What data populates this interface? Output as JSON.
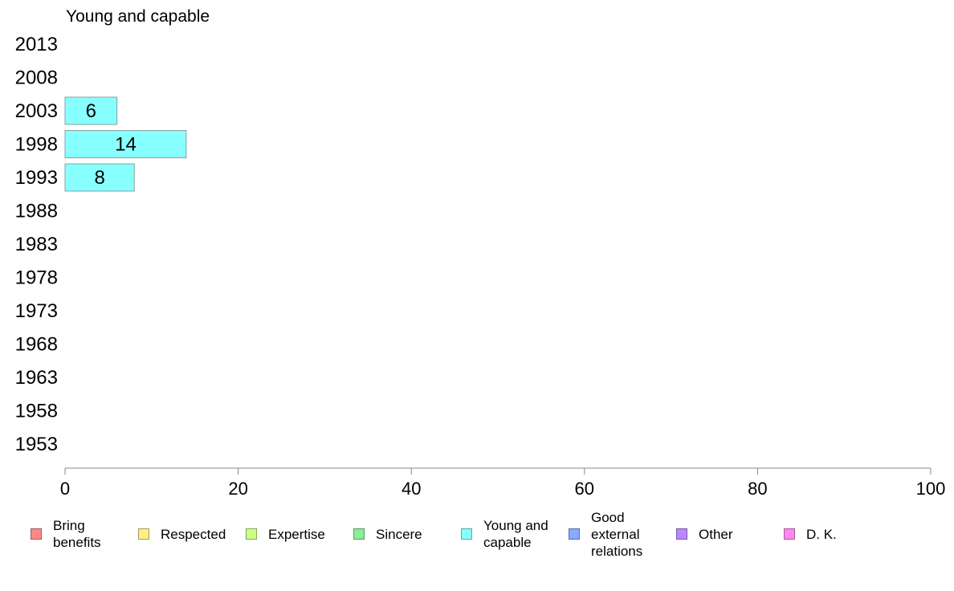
{
  "chart_data": {
    "type": "bar",
    "orientation": "horizontal",
    "title": "Young and capable",
    "categories": [
      "1953",
      "1958",
      "1963",
      "1968",
      "1973",
      "1978",
      "1983",
      "1988",
      "1993",
      "1998",
      "2003",
      "2008",
      "2013"
    ],
    "series": [
      {
        "name": "Young and capable",
        "color": "#88ffff",
        "values": [
          null,
          null,
          null,
          null,
          null,
          null,
          null,
          null,
          8,
          14,
          6,
          null,
          null
        ],
        "labels": [
          "",
          "",
          "",
          "",
          "",
          "",
          "",
          "",
          "8",
          "14",
          "6",
          "",
          ""
        ]
      }
    ],
    "xlim": [
      0,
      100
    ],
    "xticks": [
      0,
      20,
      40,
      60,
      80,
      100
    ],
    "xtick_labels": [
      "0",
      "20",
      "40",
      "60",
      "80",
      "100"
    ],
    "grid": false,
    "legend": {
      "placement": "bottom",
      "entries": [
        {
          "label": "Bring\nbenefits",
          "color": "#ff8888"
        },
        {
          "label": "Respected",
          "color": "#ffee88"
        },
        {
          "label": "Expertise",
          "color": "#ccff88"
        },
        {
          "label": "Sincere",
          "color": "#88ee99"
        },
        {
          "label": "Young and\ncapable",
          "color": "#88ffff"
        },
        {
          "label": "Good\nexternal\nrelations",
          "color": "#88aaff"
        },
        {
          "label": "Other",
          "color": "#bb88ff"
        },
        {
          "label": "D. K.",
          "color": "#ff88ee"
        }
      ]
    }
  }
}
